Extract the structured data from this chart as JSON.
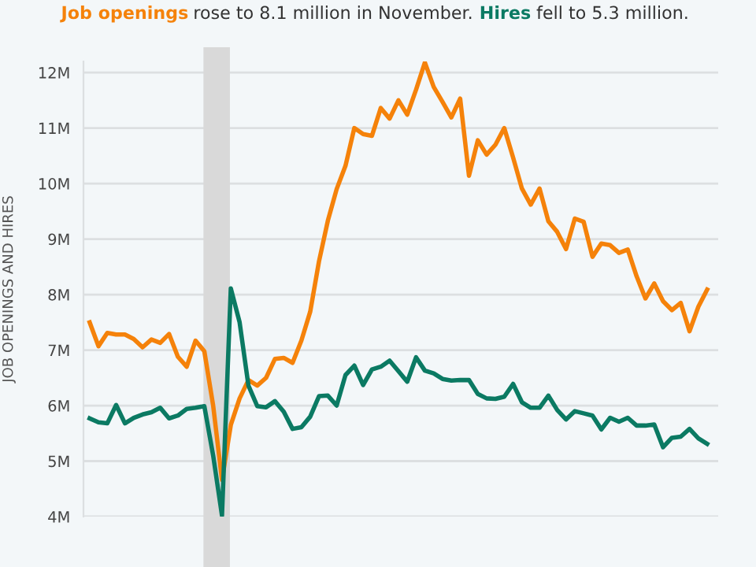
{
  "chart_data": {
    "type": "line",
    "annotations": [
      "rose to 8.1 million in November.",
      "fell to 5.3 million."
    ],
    "ylabel": "JOB OPENINGS AND HIRES",
    "categories": [
      null,
      null,
      null,
      null,
      null,
      null,
      null,
      null,
      null,
      null,
      null,
      null,
      null,
      null,
      null,
      null,
      null,
      null,
      null,
      null,
      null,
      null,
      null,
      null,
      null,
      null,
      null,
      null,
      null,
      null,
      null,
      null,
      null,
      null,
      null,
      null,
      null,
      null,
      null,
      null,
      null,
      null,
      null,
      null,
      null,
      null,
      null,
      null,
      null,
      null,
      null,
      null,
      null,
      null,
      null,
      null,
      null,
      null,
      null,
      null,
      null,
      null,
      null,
      null,
      null,
      null,
      null,
      null,
      null,
      null,
      null
    ],
    "series": [
      {
        "name": "Job openings",
        "color": "#f5820a",
        "values": [
          7.5,
          7.07,
          7.31,
          7.28,
          7.28,
          7.2,
          7.05,
          7.19,
          7.13,
          7.29,
          6.88,
          6.7,
          7.17,
          6.98,
          6.0,
          4.66,
          5.65,
          6.13,
          6.46,
          6.36,
          6.5,
          6.84,
          6.86,
          6.77,
          7.17,
          7.69,
          8.6,
          9.33,
          9.9,
          10.32,
          11.0,
          10.89,
          10.86,
          11.36,
          11.17,
          11.5,
          11.24,
          11.69,
          12.18,
          11.74,
          11.47,
          11.19,
          11.53,
          10.14,
          10.78,
          10.52,
          10.7,
          11.0,
          10.47,
          9.91,
          9.62,
          9.91,
          9.32,
          9.13,
          8.82,
          9.37,
          9.31,
          8.68,
          8.92,
          8.89,
          8.75,
          8.81,
          8.33,
          7.93,
          8.2,
          7.88,
          7.72,
          7.85,
          7.34,
          7.78,
          8.09
        ]
      },
      {
        "name": "Hires",
        "color": "#0b7a63",
        "values": [
          5.77,
          5.7,
          5.68,
          6.01,
          5.68,
          5.78,
          5.84,
          5.88,
          5.96,
          5.77,
          5.82,
          5.94,
          5.96,
          5.99,
          5.1,
          4.02,
          8.11,
          7.5,
          6.36,
          5.99,
          5.97,
          6.08,
          5.89,
          5.58,
          5.61,
          5.8,
          6.17,
          6.18,
          6.0,
          6.55,
          6.72,
          6.37,
          6.65,
          6.7,
          6.81,
          6.62,
          6.43,
          6.87,
          6.63,
          6.58,
          6.48,
          6.45,
          6.46,
          6.46,
          6.21,
          6.13,
          6.12,
          6.16,
          6.39,
          6.06,
          5.96,
          5.96,
          6.18,
          5.92,
          5.75,
          5.9,
          5.86,
          5.82,
          5.57,
          5.78,
          5.71,
          5.78,
          5.64,
          5.64,
          5.66,
          5.25,
          5.42,
          5.44,
          5.58,
          5.41,
          5.31
        ]
      }
    ],
    "ylim": [
      4,
      12.2
    ],
    "yticks": [
      {
        "value": 4,
        "label": "4M"
      },
      {
        "value": 5,
        "label": "5M"
      },
      {
        "value": 6,
        "label": "6M"
      },
      {
        "value": 7,
        "label": "7M"
      },
      {
        "value": 8,
        "label": "8M"
      },
      {
        "value": 9,
        "label": "9M"
      },
      {
        "value": 10,
        "label": "10M"
      },
      {
        "value": 11,
        "label": "11M"
      },
      {
        "value": 12,
        "label": "12M"
      }
    ],
    "grid": "y",
    "legend": false,
    "tick_labels": "y",
    "marker": "none",
    "line_style": "solid"
  }
}
